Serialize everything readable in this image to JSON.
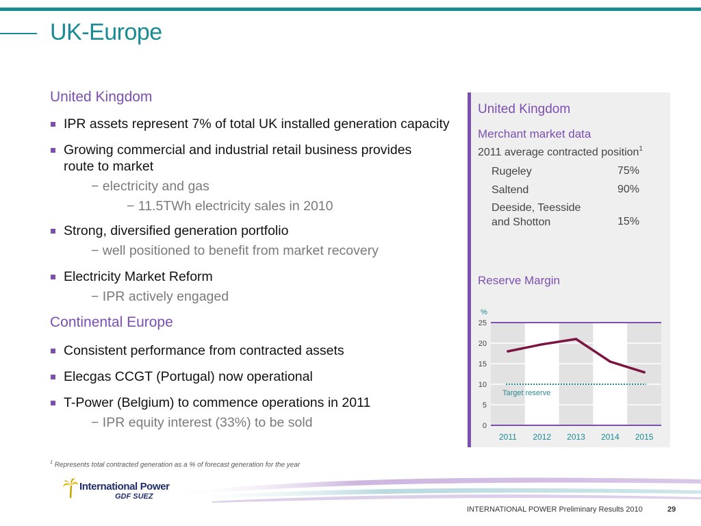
{
  "header": {
    "title": "UK-Europe"
  },
  "left": {
    "uk_heading": "United Kingdom",
    "bullets_uk": [
      "IPR assets represent 7% of total UK installed generation capacity",
      "Growing commercial and industrial retail business provides route to market",
      "Strong, diversified generation portfolio",
      "Electricity Market Reform"
    ],
    "subs": {
      "electricity_gas": "− electricity and gas",
      "twh": "− 11.5TWh electricity sales  in 2010",
      "recovery": "− well positioned to benefit from market recovery",
      "engaged": "− IPR actively engaged",
      "equity": "− IPR equity interest (33%) to be sold"
    },
    "ce_heading": "Continental Europe",
    "bullets_ce": [
      "Consistent performance from contracted assets",
      "Elecgas CCGT (Portugal) now operational",
      "T-Power (Belgium) to commence operations in 2011"
    ]
  },
  "panel": {
    "title": "United Kingdom",
    "subtitle": "Merchant market data",
    "contracted_label": "2011 average contracted position",
    "footnote_marker": "1",
    "rows": [
      {
        "name": "Rugeley",
        "value": "75%"
      },
      {
        "name": "Saltend",
        "value": "90%"
      },
      {
        "name": "Deeside, Teesside",
        "name2": "and Shotton",
        "value": "15%"
      }
    ],
    "reserve_title": "Reserve Margin"
  },
  "chart_data": {
    "type": "line",
    "title": "Reserve Margin",
    "ylabel": "%",
    "x": [
      "2011",
      "2012",
      "2013",
      "2014",
      "2015"
    ],
    "yticks": [
      0,
      5,
      10,
      15,
      20,
      25
    ],
    "ylim": [
      0,
      25
    ],
    "series": [
      {
        "values": [
          18,
          19.7,
          21,
          15.5,
          12.9
        ],
        "color": "#7a1440"
      }
    ],
    "reference_line": {
      "label": "Target reserve",
      "value": 10,
      "color": "#2a8a94"
    },
    "grid": true
  },
  "footnote": {
    "marker": "1",
    "text": "Represents total contracted generation as a % of forecast generation for the year"
  },
  "footer": {
    "company_logo": "International Power",
    "company_sub": "GDF SUEZ",
    "text": "INTERNATIONAL POWER Preliminary Results 2010",
    "page": "29"
  },
  "colors": {
    "teal": "#1a8a94",
    "purple": "#7b4fb0",
    "line": "#7a1440",
    "navy": "#1f2d6b"
  }
}
